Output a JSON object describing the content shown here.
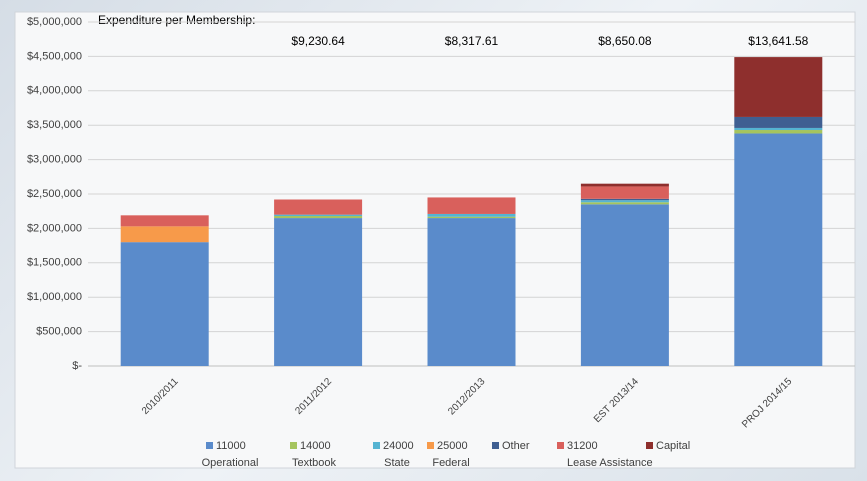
{
  "chart_data": {
    "type": "stacked_bar",
    "annotation_title": "Expenditure per Membership:",
    "per_membership_labels": [
      null,
      "$9,230.64",
      "$8,317.61",
      "$8,650.08",
      "$13,641.58"
    ],
    "categories": [
      "2010/2011",
      "2011/2012",
      "2012/2013",
      "EST 2013/14",
      "PROJ 2014/15"
    ],
    "series": [
      {
        "name": "11000",
        "description": "Operational",
        "color": "#5a8bcb",
        "values": [
          1800000,
          2150000,
          2150000,
          2350000,
          3380000
        ]
      },
      {
        "name": "14000",
        "description": "Textbook",
        "color": "#a5c45e",
        "values": [
          0,
          30000,
          20000,
          30000,
          50000
        ]
      },
      {
        "name": "24000",
        "description": "State",
        "color": "#55b4d2",
        "values": [
          0,
          20000,
          40000,
          30000,
          30000
        ]
      },
      {
        "name": "25000",
        "description": "Federal",
        "color": "#f79a4a",
        "values": [
          230000,
          0,
          0,
          0,
          0
        ]
      },
      {
        "name": "Other",
        "color": "#3f5f92",
        "values": [
          0,
          0,
          0,
          20000,
          160000
        ]
      },
      {
        "name": "31200",
        "description": "Lease Assistance",
        "color": "#d9605c",
        "values": [
          160000,
          220000,
          240000,
          180000,
          0
        ]
      },
      {
        "name": "Capital",
        "color": "#8e2f2d",
        "values": [
          0,
          0,
          0,
          40000,
          870000
        ]
      }
    ],
    "ylim": [
      0,
      5000000
    ],
    "yticks": [
      {
        "value": 0,
        "label": "$-"
      },
      {
        "value": 500000,
        "label": "$500,000"
      },
      {
        "value": 1000000,
        "label": "$1,000,000"
      },
      {
        "value": 1500000,
        "label": "$1,500,000"
      },
      {
        "value": 2000000,
        "label": "$2,000,000"
      },
      {
        "value": 2500000,
        "label": "$2,500,000"
      },
      {
        "value": 3000000,
        "label": "$3,000,000"
      },
      {
        "value": 3500000,
        "label": "$3,500,000"
      },
      {
        "value": 4000000,
        "label": "$4,000,000"
      },
      {
        "value": 4500000,
        "label": "$4,500,000"
      },
      {
        "value": 5000000,
        "label": "$5,000,000"
      }
    ],
    "grid": true
  }
}
